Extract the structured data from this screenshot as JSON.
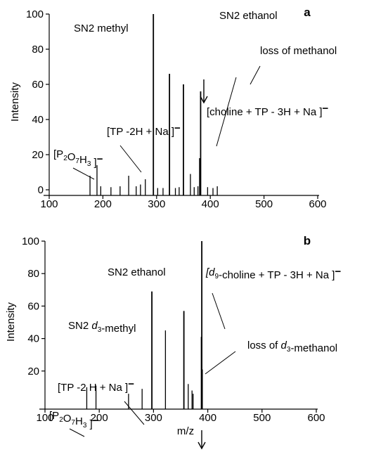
{
  "chart_data": [
    {
      "type": "bar",
      "panel_label": "a",
      "xlim": [
        100,
        600
      ],
      "ylim": [
        0,
        100
      ],
      "x_ticks": [
        "100",
        "200",
        "300",
        "400",
        "500",
        "600"
      ],
      "y_ticks": [
        "0",
        "20",
        "40",
        "60",
        "80",
        "100"
      ],
      "ylabel": "Intensity",
      "xlabel": "",
      "peaks": [
        {
          "x": 176,
          "y": 8
        },
        {
          "x": 189,
          "y": 14
        },
        {
          "x": 196,
          "y": 2
        },
        {
          "x": 215,
          "y": 1.5
        },
        {
          "x": 232,
          "y": 2
        },
        {
          "x": 248,
          "y": 8
        },
        {
          "x": 262,
          "y": 2
        },
        {
          "x": 270,
          "y": 3
        },
        {
          "x": 279,
          "y": 6
        },
        {
          "x": 294,
          "y": 100
        },
        {
          "x": 302,
          "y": 1
        },
        {
          "x": 312,
          "y": 1
        },
        {
          "x": 324,
          "y": 66
        },
        {
          "x": 335,
          "y": 1
        },
        {
          "x": 342,
          "y": 1.5
        },
        {
          "x": 350,
          "y": 60
        },
        {
          "x": 363,
          "y": 9
        },
        {
          "x": 370,
          "y": 1.5
        },
        {
          "x": 377,
          "y": 2
        },
        {
          "x": 380,
          "y": 18
        },
        {
          "x": 382,
          "y": 56
        },
        {
          "x": 395,
          "y": 1.5
        },
        {
          "x": 405,
          "y": 1
        },
        {
          "x": 413,
          "y": 2
        }
      ],
      "annotations": [
        {
          "id": "sn2-methyl",
          "parts": [
            {
              "t": "SN2 methyl"
            }
          ]
        },
        {
          "id": "sn2-ethanol",
          "parts": [
            {
              "t": "SN2 ethanol"
            }
          ]
        },
        {
          "id": "loss-methanol",
          "parts": [
            {
              "t": "loss of methanol"
            }
          ]
        },
        {
          "id": "choline-tp",
          "parts": [
            {
              "t": "[choline + TP - 3H + Na ]"
            },
            {
              "t": "−",
              "sup": true
            }
          ]
        },
        {
          "id": "tp-na",
          "parts": [
            {
              "t": "[TP -2H + Na ]"
            },
            {
              "t": "−",
              "sup": true
            }
          ]
        },
        {
          "id": "p2o7h3",
          "parts": [
            {
              "t": "[P"
            },
            {
              "t": "2",
              "sub": true
            },
            {
              "t": "O"
            },
            {
              "t": "7",
              "sub": true
            },
            {
              "t": "H"
            },
            {
              "t": "3",
              "sub": true
            },
            {
              "t": " ]"
            },
            {
              "t": "−",
              "sup": true
            }
          ]
        }
      ]
    },
    {
      "type": "bar",
      "panel_label": "b",
      "xlim": [
        100,
        600
      ],
      "ylim": [
        0,
        100
      ],
      "x_ticks": [
        "100",
        "200",
        "300",
        "400",
        "500",
        "600"
      ],
      "y_ticks": [
        "20",
        "40",
        "60",
        "80",
        "100"
      ],
      "ylabel": "Intensity",
      "xlabel": "m/z",
      "peaks": [
        {
          "x": 177,
          "y": 10
        },
        {
          "x": 194,
          "y": 11
        },
        {
          "x": 254,
          "y": 6
        },
        {
          "x": 279,
          "y": 9
        },
        {
          "x": 297,
          "y": 69
        },
        {
          "x": 322,
          "y": 45
        },
        {
          "x": 356,
          "y": 57
        },
        {
          "x": 364,
          "y": 12
        },
        {
          "x": 371,
          "y": 8
        },
        {
          "x": 373,
          "y": 6
        },
        {
          "x": 388,
          "y": 41
        },
        {
          "x": 389,
          "y": 100
        },
        {
          "x": 390,
          "y": 21
        }
      ],
      "annotations": [
        {
          "id": "sn2-ethanol",
          "parts": [
            {
              "t": "SN2 ethanol"
            }
          ]
        },
        {
          "id": "sn2-d3-methyl",
          "parts": [
            {
              "t": "SN2 "
            },
            {
              "t": "d",
              "italic": true
            },
            {
              "t": "3",
              "sub": true
            },
            {
              "t": "-methyl"
            }
          ]
        },
        {
          "id": "d9-choline-tp",
          "parts": [
            {
              "t": "[d",
              "italic": true
            },
            {
              "t": "9",
              "sub": true
            },
            {
              "t": "-choline + TP - 3H + Na ]"
            },
            {
              "t": "−",
              "sup": true
            }
          ]
        },
        {
          "id": "loss-d3-methanol",
          "parts": [
            {
              "t": "loss of "
            },
            {
              "t": "d",
              "italic": true
            },
            {
              "t": "3",
              "sub": true
            },
            {
              "t": "-methanol"
            }
          ]
        },
        {
          "id": "tp-na",
          "parts": [
            {
              "t": "[TP -2 H + Na ]"
            },
            {
              "t": "−",
              "sup": true
            }
          ]
        },
        {
          "id": "p2o7h3",
          "parts": [
            {
              "t": "[P"
            },
            {
              "t": "2",
              "sub": true
            },
            {
              "t": "O"
            },
            {
              "t": "7",
              "sub": true
            },
            {
              "t": "H"
            },
            {
              "t": "3",
              "sub": true
            },
            {
              "t": " ]"
            },
            {
              "t": "−",
              "sup": true
            }
          ]
        }
      ]
    }
  ]
}
